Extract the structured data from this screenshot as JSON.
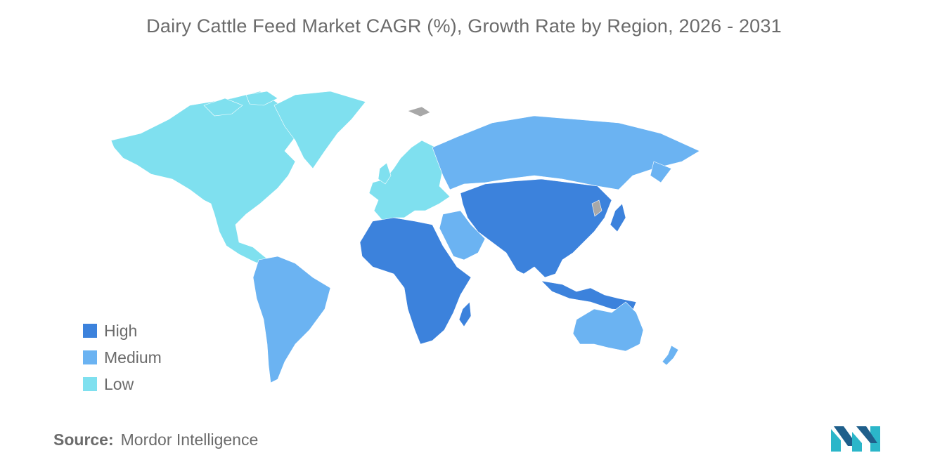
{
  "title": "Dairy Cattle Feed Market CAGR (%), Growth Rate by Region, 2026 - 2031",
  "colors": {
    "high": "#3c82dc",
    "medium": "#6bb3f2",
    "low": "#7fe0ef",
    "no_data": "#a8a8a8"
  },
  "legend": [
    {
      "label": "High",
      "level": "high"
    },
    {
      "label": "Medium",
      "level": "medium"
    },
    {
      "label": "Low",
      "level": "low"
    }
  ],
  "regions": [
    {
      "name": "North America",
      "level": "low"
    },
    {
      "name": "Europe",
      "level": "low"
    },
    {
      "name": "South America",
      "level": "medium"
    },
    {
      "name": "Russia",
      "level": "medium"
    },
    {
      "name": "Middle East",
      "level": "medium"
    },
    {
      "name": "Australia and New Zealand",
      "level": "medium"
    },
    {
      "name": "Africa",
      "level": "high"
    },
    {
      "name": "Asia",
      "level": "high"
    }
  ],
  "source": {
    "label": "Source:",
    "text": "Mordor Intelligence"
  },
  "logo": {
    "icon": "mordor-intelligence-logo"
  }
}
